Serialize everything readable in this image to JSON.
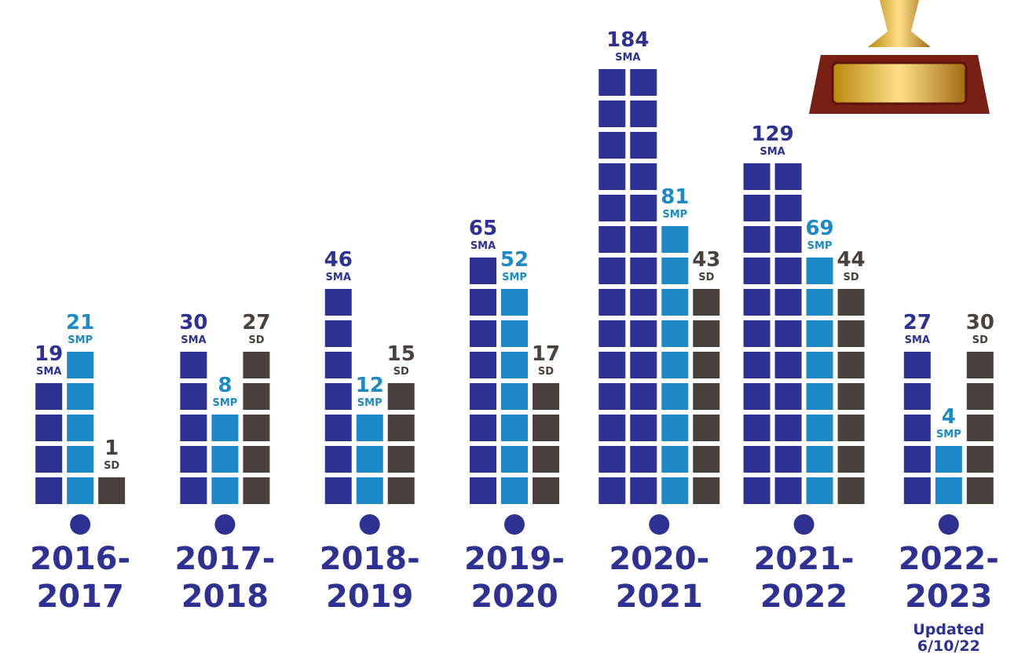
{
  "chart_data": {
    "type": "pictogram-bar",
    "categories": [
      "2016-2017",
      "2017-2018",
      "2018-2019",
      "2019-2020",
      "2020-2021",
      "2021-2022",
      "2022-2023"
    ],
    "series": [
      {
        "name": "SMA",
        "color": "#2e3192",
        "values": [
          19,
          30,
          46,
          65,
          184,
          129,
          27
        ]
      },
      {
        "name": "SMP",
        "color": "#1b8ac6",
        "values": [
          21,
          8,
          12,
          52,
          81,
          69,
          4
        ]
      },
      {
        "name": "SD",
        "color": "#4a403c",
        "values": [
          1,
          27,
          15,
          17,
          43,
          44,
          30
        ]
      }
    ],
    "annotation": "Updated 6/10/22"
  }
}
